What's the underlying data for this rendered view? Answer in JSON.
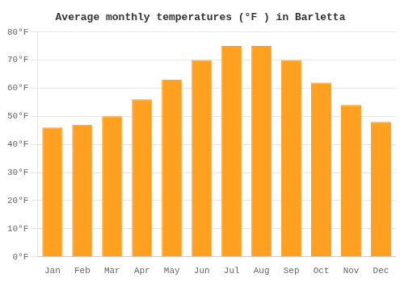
{
  "chart_data": {
    "type": "bar",
    "title": "Average monthly temperatures (°F ) in Barletta",
    "categories": [
      "Jan",
      "Feb",
      "Mar",
      "Apr",
      "May",
      "Jun",
      "Jul",
      "Aug",
      "Sep",
      "Oct",
      "Nov",
      "Dec"
    ],
    "values": [
      46,
      47,
      50,
      56,
      63,
      70,
      75,
      75,
      70,
      62,
      54,
      48
    ],
    "color": "#FFA020",
    "ylim": [
      0,
      80
    ],
    "yticks": [
      {
        "value": 0,
        "label": "0°F"
      },
      {
        "value": 10,
        "label": "10°F"
      },
      {
        "value": 20,
        "label": "20°F"
      },
      {
        "value": 30,
        "label": "30°F"
      },
      {
        "value": 40,
        "label": "40°F"
      },
      {
        "value": 50,
        "label": "50°F"
      },
      {
        "value": 60,
        "label": "60°F"
      },
      {
        "value": 70,
        "label": "70°F"
      },
      {
        "value": 80,
        "label": "80°F"
      }
    ],
    "grid": "y"
  }
}
